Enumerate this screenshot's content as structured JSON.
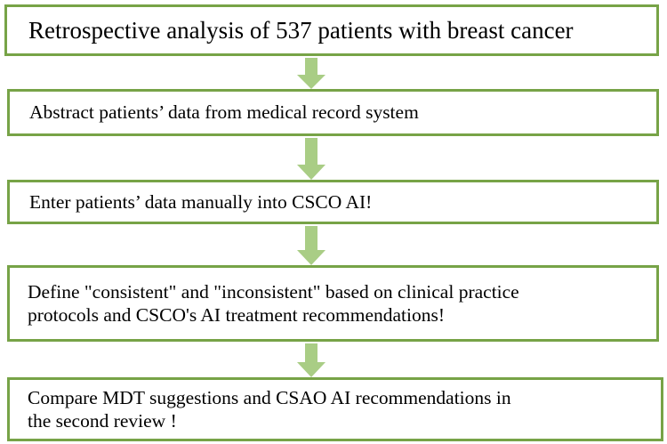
{
  "flowchart": {
    "steps": [
      {
        "text": "Retrospective analysis of 537 patients with breast cancer"
      },
      {
        "text": "Abstract patients’ data from medical record system"
      },
      {
        "text": "Enter patients’ data manually into CSCO AI!"
      },
      {
        "text": "Define \"consistent\" and \"inconsistent\" based on clinical practice\nprotocols and CSCO's AI treatment recommendations!"
      },
      {
        "text": "Compare MDT suggestions and CSAO AI recommendations in\nthe second review !"
      }
    ],
    "colors": {
      "box_border": "#77a347",
      "arrow_fill": "#a9cd85",
      "text": "#000000"
    }
  }
}
